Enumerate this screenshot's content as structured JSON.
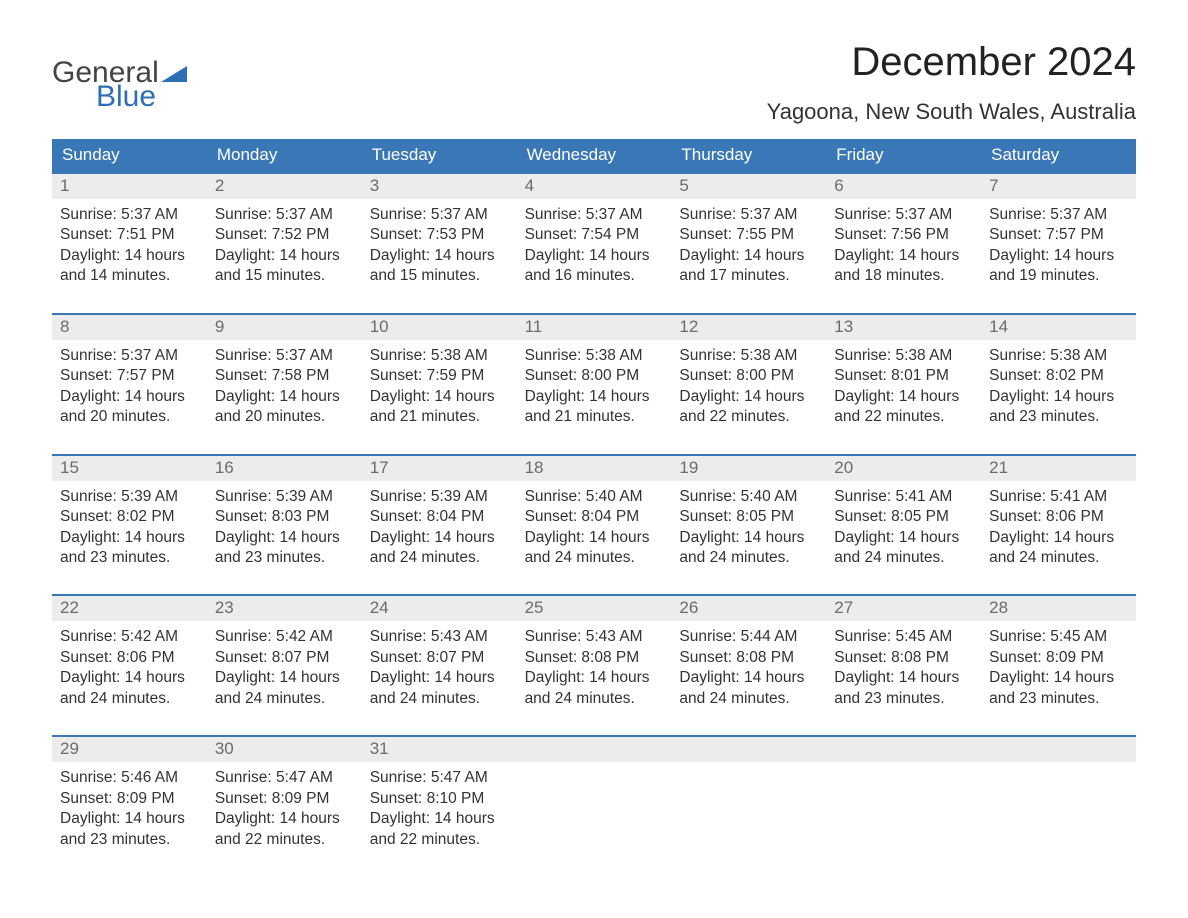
{
  "brand": {
    "general": "General",
    "blue": "Blue",
    "general_color": "#444444",
    "blue_color": "#2d6fb4",
    "triangle_color": "#2d6fb4"
  },
  "title": {
    "month": "December 2024",
    "location": "Yagoona, New South Wales, Australia",
    "month_fontsize": 40,
    "location_fontsize": 22
  },
  "colors": {
    "header_bg": "#3a77b7",
    "header_text": "#ffffff",
    "daynum_bg": "#ececec",
    "daynum_text": "#6b6b6b",
    "body_text": "#333333",
    "week_divider": "#3a77b7",
    "page_bg": "#ffffff"
  },
  "weekdays": [
    "Sunday",
    "Monday",
    "Tuesday",
    "Wednesday",
    "Thursday",
    "Friday",
    "Saturday"
  ],
  "weeks": [
    {
      "nums": [
        "1",
        "2",
        "3",
        "4",
        "5",
        "6",
        "7"
      ],
      "days": [
        {
          "sunrise": "Sunrise: 5:37 AM",
          "sunset": "Sunset: 7:51 PM",
          "d1": "Daylight: 14 hours",
          "d2": "and 14 minutes."
        },
        {
          "sunrise": "Sunrise: 5:37 AM",
          "sunset": "Sunset: 7:52 PM",
          "d1": "Daylight: 14 hours",
          "d2": "and 15 minutes."
        },
        {
          "sunrise": "Sunrise: 5:37 AM",
          "sunset": "Sunset: 7:53 PM",
          "d1": "Daylight: 14 hours",
          "d2": "and 15 minutes."
        },
        {
          "sunrise": "Sunrise: 5:37 AM",
          "sunset": "Sunset: 7:54 PM",
          "d1": "Daylight: 14 hours",
          "d2": "and 16 minutes."
        },
        {
          "sunrise": "Sunrise: 5:37 AM",
          "sunset": "Sunset: 7:55 PM",
          "d1": "Daylight: 14 hours",
          "d2": "and 17 minutes."
        },
        {
          "sunrise": "Sunrise: 5:37 AM",
          "sunset": "Sunset: 7:56 PM",
          "d1": "Daylight: 14 hours",
          "d2": "and 18 minutes."
        },
        {
          "sunrise": "Sunrise: 5:37 AM",
          "sunset": "Sunset: 7:57 PM",
          "d1": "Daylight: 14 hours",
          "d2": "and 19 minutes."
        }
      ]
    },
    {
      "nums": [
        "8",
        "9",
        "10",
        "11",
        "12",
        "13",
        "14"
      ],
      "days": [
        {
          "sunrise": "Sunrise: 5:37 AM",
          "sunset": "Sunset: 7:57 PM",
          "d1": "Daylight: 14 hours",
          "d2": "and 20 minutes."
        },
        {
          "sunrise": "Sunrise: 5:37 AM",
          "sunset": "Sunset: 7:58 PM",
          "d1": "Daylight: 14 hours",
          "d2": "and 20 minutes."
        },
        {
          "sunrise": "Sunrise: 5:38 AM",
          "sunset": "Sunset: 7:59 PM",
          "d1": "Daylight: 14 hours",
          "d2": "and 21 minutes."
        },
        {
          "sunrise": "Sunrise: 5:38 AM",
          "sunset": "Sunset: 8:00 PM",
          "d1": "Daylight: 14 hours",
          "d2": "and 21 minutes."
        },
        {
          "sunrise": "Sunrise: 5:38 AM",
          "sunset": "Sunset: 8:00 PM",
          "d1": "Daylight: 14 hours",
          "d2": "and 22 minutes."
        },
        {
          "sunrise": "Sunrise: 5:38 AM",
          "sunset": "Sunset: 8:01 PM",
          "d1": "Daylight: 14 hours",
          "d2": "and 22 minutes."
        },
        {
          "sunrise": "Sunrise: 5:38 AM",
          "sunset": "Sunset: 8:02 PM",
          "d1": "Daylight: 14 hours",
          "d2": "and 23 minutes."
        }
      ]
    },
    {
      "nums": [
        "15",
        "16",
        "17",
        "18",
        "19",
        "20",
        "21"
      ],
      "days": [
        {
          "sunrise": "Sunrise: 5:39 AM",
          "sunset": "Sunset: 8:02 PM",
          "d1": "Daylight: 14 hours",
          "d2": "and 23 minutes."
        },
        {
          "sunrise": "Sunrise: 5:39 AM",
          "sunset": "Sunset: 8:03 PM",
          "d1": "Daylight: 14 hours",
          "d2": "and 23 minutes."
        },
        {
          "sunrise": "Sunrise: 5:39 AM",
          "sunset": "Sunset: 8:04 PM",
          "d1": "Daylight: 14 hours",
          "d2": "and 24 minutes."
        },
        {
          "sunrise": "Sunrise: 5:40 AM",
          "sunset": "Sunset: 8:04 PM",
          "d1": "Daylight: 14 hours",
          "d2": "and 24 minutes."
        },
        {
          "sunrise": "Sunrise: 5:40 AM",
          "sunset": "Sunset: 8:05 PM",
          "d1": "Daylight: 14 hours",
          "d2": "and 24 minutes."
        },
        {
          "sunrise": "Sunrise: 5:41 AM",
          "sunset": "Sunset: 8:05 PM",
          "d1": "Daylight: 14 hours",
          "d2": "and 24 minutes."
        },
        {
          "sunrise": "Sunrise: 5:41 AM",
          "sunset": "Sunset: 8:06 PM",
          "d1": "Daylight: 14 hours",
          "d2": "and 24 minutes."
        }
      ]
    },
    {
      "nums": [
        "22",
        "23",
        "24",
        "25",
        "26",
        "27",
        "28"
      ],
      "days": [
        {
          "sunrise": "Sunrise: 5:42 AM",
          "sunset": "Sunset: 8:06 PM",
          "d1": "Daylight: 14 hours",
          "d2": "and 24 minutes."
        },
        {
          "sunrise": "Sunrise: 5:42 AM",
          "sunset": "Sunset: 8:07 PM",
          "d1": "Daylight: 14 hours",
          "d2": "and 24 minutes."
        },
        {
          "sunrise": "Sunrise: 5:43 AM",
          "sunset": "Sunset: 8:07 PM",
          "d1": "Daylight: 14 hours",
          "d2": "and 24 minutes."
        },
        {
          "sunrise": "Sunrise: 5:43 AM",
          "sunset": "Sunset: 8:08 PM",
          "d1": "Daylight: 14 hours",
          "d2": "and 24 minutes."
        },
        {
          "sunrise": "Sunrise: 5:44 AM",
          "sunset": "Sunset: 8:08 PM",
          "d1": "Daylight: 14 hours",
          "d2": "and 24 minutes."
        },
        {
          "sunrise": "Sunrise: 5:45 AM",
          "sunset": "Sunset: 8:08 PM",
          "d1": "Daylight: 14 hours",
          "d2": "and 23 minutes."
        },
        {
          "sunrise": "Sunrise: 5:45 AM",
          "sunset": "Sunset: 8:09 PM",
          "d1": "Daylight: 14 hours",
          "d2": "and 23 minutes."
        }
      ]
    },
    {
      "nums": [
        "29",
        "30",
        "31",
        "",
        "",
        "",
        ""
      ],
      "days": [
        {
          "sunrise": "Sunrise: 5:46 AM",
          "sunset": "Sunset: 8:09 PM",
          "d1": "Daylight: 14 hours",
          "d2": "and 23 minutes."
        },
        {
          "sunrise": "Sunrise: 5:47 AM",
          "sunset": "Sunset: 8:09 PM",
          "d1": "Daylight: 14 hours",
          "d2": "and 22 minutes."
        },
        {
          "sunrise": "Sunrise: 5:47 AM",
          "sunset": "Sunset: 8:10 PM",
          "d1": "Daylight: 14 hours",
          "d2": "and 22 minutes."
        },
        null,
        null,
        null,
        null
      ]
    }
  ]
}
